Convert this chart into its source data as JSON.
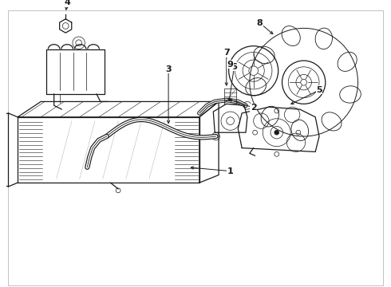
{
  "background_color": "#ffffff",
  "line_color": "#1a1a1a",
  "figsize": [
    4.9,
    3.6
  ],
  "dpi": 100,
  "border_color": "#cccccc"
}
